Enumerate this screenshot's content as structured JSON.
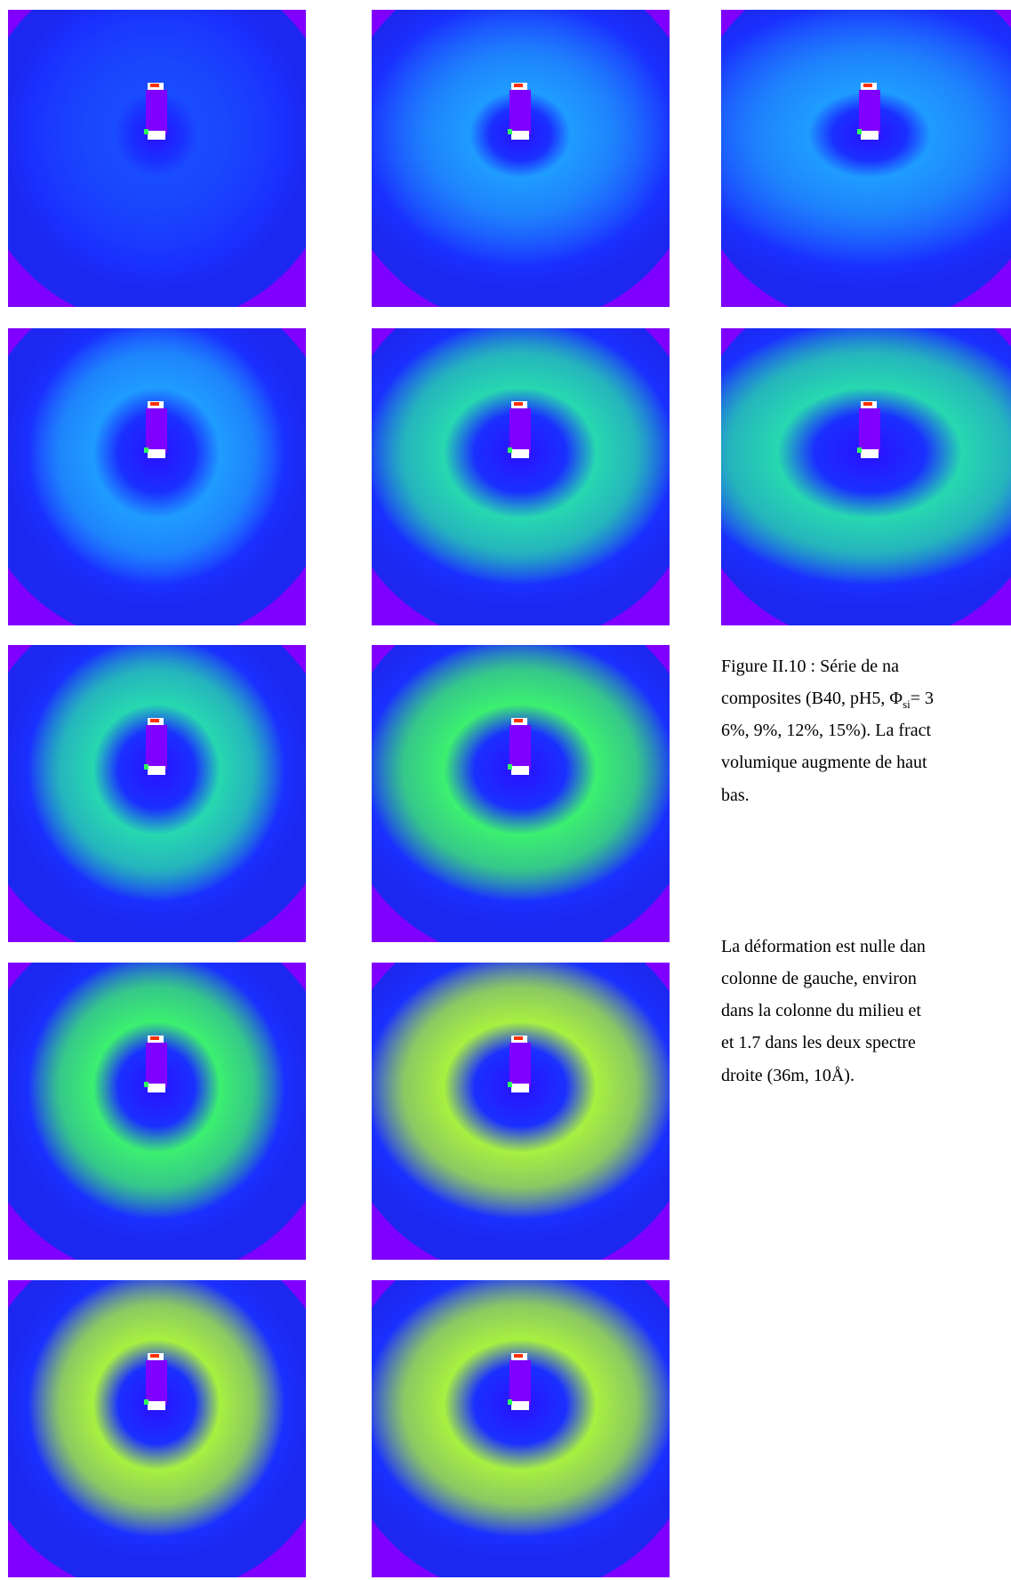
{
  "caption": {
    "lines": [
      [
        "Figure II.10 : Série de na"
      ],
      [
        "composites (B40, pH5, Φ",
        "si",
        "= 3"
      ],
      [
        "6%, 9%, 12%, 15%). La fract"
      ],
      [
        "volumique augmente de haut"
      ],
      [
        "bas."
      ]
    ]
  },
  "paragraph": {
    "lines": [
      "La déformation est nulle dan",
      "colonne de gauche, environ",
      "dans la colonne du milieu et",
      "et 1.7 dans les deux spectre",
      "droite (36m, 10Å)."
    ]
  }
}
